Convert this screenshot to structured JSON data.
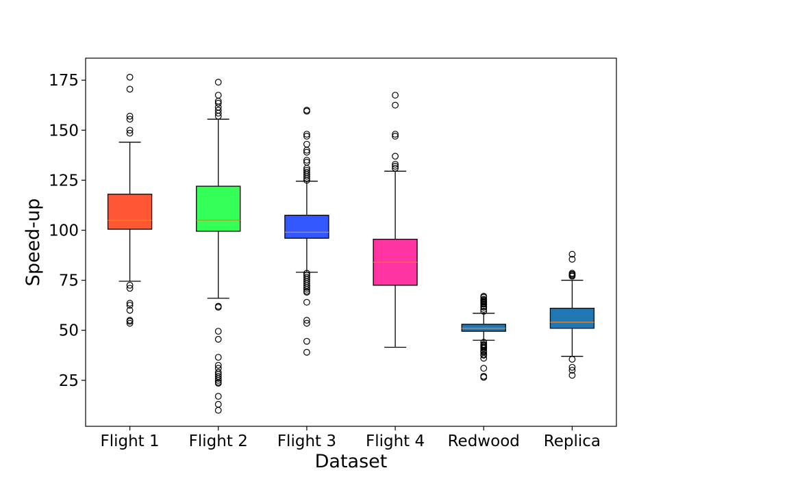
{
  "chart_data": {
    "type": "box",
    "title": "",
    "xlabel": "Dataset",
    "ylabel": "Speed-up",
    "ylim": [
      2,
      186
    ],
    "yticks": [
      25,
      50,
      75,
      100,
      125,
      150,
      175
    ],
    "grid": false,
    "legend": "none",
    "series": [
      {
        "category": "Flight 1",
        "color": "#ff5733",
        "whisker_low": 74.5,
        "q1": 100.5,
        "median": 105,
        "q3": 118,
        "whisker_high": 144,
        "outliers": [
          176.5,
          170.5,
          157,
          155.5,
          150,
          148.5,
          72.5,
          71,
          63.5,
          62.5,
          60,
          55,
          54.5,
          53.5
        ]
      },
      {
        "category": "Flight 2",
        "color": "#33ff57",
        "whisker_low": 66,
        "q1": 99.5,
        "median": 105,
        "q3": 122,
        "whisker_high": 155.5,
        "outliers": [
          174,
          167.5,
          164.5,
          163.5,
          161.5,
          160,
          158.5,
          157,
          62,
          61.5,
          49.5,
          45.5,
          36.5,
          32.5,
          31,
          29,
          28,
          27,
          26,
          25,
          24,
          23.5,
          17,
          13,
          10
        ]
      },
      {
        "category": "Flight 3",
        "color": "#3357ff",
        "whisker_low": 79,
        "q1": 96,
        "median": 99,
        "q3": 107.5,
        "whisker_high": 124.5,
        "outliers": [
          160,
          159.5,
          148,
          147,
          143,
          140,
          139,
          135,
          134,
          131,
          130,
          129,
          128,
          127,
          126,
          125,
          78.5,
          77.5,
          76.5,
          75.5,
          74.5,
          73.5,
          72.5,
          71.5,
          70.5,
          69.5,
          69,
          64,
          55,
          53.5,
          44.5,
          39
        ]
      },
      {
        "category": "Flight 4",
        "color": "#ff33a1",
        "whisker_low": 41.5,
        "q1": 72.5,
        "median": 84,
        "q3": 95.5,
        "whisker_high": 129.5,
        "outliers": [
          167.5,
          162.5,
          148,
          147,
          137,
          133,
          132,
          131
        ]
      },
      {
        "category": "Redwood",
        "color": "#1f77b4",
        "whisker_low": 45,
        "q1": 49.5,
        "median": 51,
        "q3": 53,
        "whisker_high": 58.5,
        "outliers": [
          67,
          66.5,
          65.5,
          65,
          64.5,
          64,
          63.5,
          63,
          62,
          61.5,
          60.5,
          59.5,
          44,
          43,
          42.5,
          42,
          41.5,
          41,
          40,
          39.5,
          39,
          38,
          37.5,
          36,
          31,
          27,
          26.5
        ]
      },
      {
        "category": "Replica",
        "color": "#1f77b4",
        "whisker_low": 37,
        "q1": 51,
        "median": 54,
        "q3": 61,
        "whisker_high": 75,
        "outliers": [
          88,
          85.5,
          78.5,
          78,
          77.5,
          77,
          35.5,
          31.5,
          30,
          27.5
        ]
      }
    ]
  }
}
